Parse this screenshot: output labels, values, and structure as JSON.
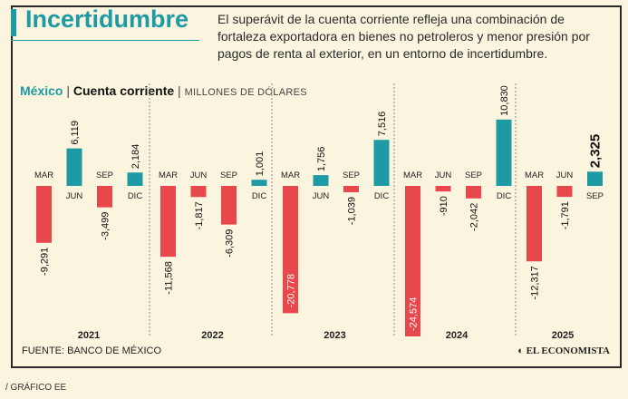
{
  "header": {
    "title": "Incertidumbre",
    "subtitle": "El superávit de la cuenta corriente refleja una combinación de fortaleza exportadora en bienes no petroleros y menor presión por pagos de renta al exterior,  en un entorno de incertidumbre."
  },
  "chart_heading": {
    "country": "México",
    "metric": "Cuenta corriente",
    "units": "MILLONES DE DÓLARES",
    "separator": "|"
  },
  "footer": {
    "source": "FUENTE: BANCO DE MÉXICO",
    "brand": "EL ECONOMISTA",
    "credit": "/ GRÁFICO EE"
  },
  "colors": {
    "positive": "#1e9aa5",
    "negative": "#e8474b",
    "title": "#1e9aa5",
    "background": "#fbf5df"
  },
  "chart_data": {
    "type": "bar",
    "title": "Cuenta corriente",
    "xlabel": "",
    "ylabel": "Millones de dólares",
    "ylim": [
      -26000,
      12000
    ],
    "grid": false,
    "years": [
      {
        "year": "2021",
        "quarters": [
          {
            "label": "MAR",
            "value": -9291,
            "text": "-9,291"
          },
          {
            "label": "JUN",
            "value": 6119,
            "text": "6,119"
          },
          {
            "label": "SEP",
            "value": -3499,
            "text": "-3,499"
          },
          {
            "label": "DIC",
            "value": 2184,
            "text": "2,184"
          }
        ]
      },
      {
        "year": "2022",
        "quarters": [
          {
            "label": "MAR",
            "value": -11568,
            "text": "-11,568"
          },
          {
            "label": "JUN",
            "value": -1817,
            "text": "-1,817"
          },
          {
            "label": "SEP",
            "value": -6309,
            "text": "-6,309"
          },
          {
            "label": "DIC",
            "value": 1001,
            "text": "1,001"
          }
        ]
      },
      {
        "year": "2023",
        "quarters": [
          {
            "label": "MAR",
            "value": -20778,
            "text": "-20,778"
          },
          {
            "label": "JUN",
            "value": 1756,
            "text": "1,756"
          },
          {
            "label": "SEP",
            "value": -1039,
            "text": "-1,039"
          },
          {
            "label": "DIC",
            "value": 7516,
            "text": "7,516"
          }
        ]
      },
      {
        "year": "2024",
        "quarters": [
          {
            "label": "MAR",
            "value": -24574,
            "text": "-24,574"
          },
          {
            "label": "JUN",
            "value": -910,
            "text": "-910"
          },
          {
            "label": "SEP",
            "value": -2042,
            "text": "-2,042"
          },
          {
            "label": "DIC",
            "value": 10830,
            "text": "10,830"
          }
        ]
      },
      {
        "year": "2025",
        "quarters": [
          {
            "label": "MAR",
            "value": -12317,
            "text": "-12,317"
          },
          {
            "label": "JUN",
            "value": -1791,
            "text": "-1,791"
          },
          {
            "label": "SEP",
            "value": 2325,
            "text": "2,325",
            "highlight": true
          }
        ]
      }
    ]
  }
}
